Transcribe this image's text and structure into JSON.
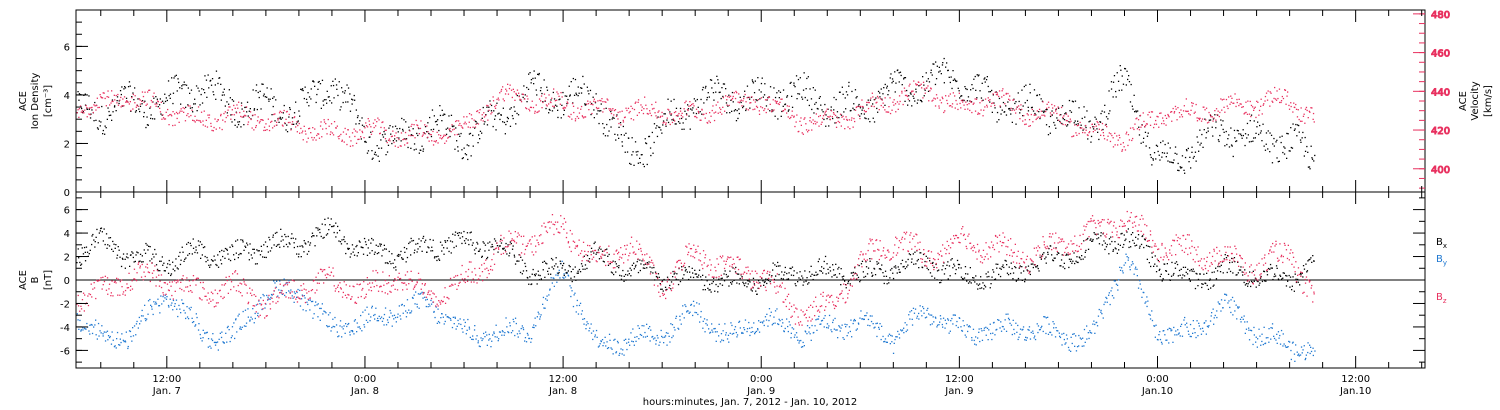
{
  "colors": {
    "frame": "#000000",
    "black_series": "#000000",
    "pink_series": "#e8305f",
    "blue_series": "#1f78d1"
  },
  "xlabel": "hours:minutes, Jan.  7, 2012 - Jan. 10, 2012",
  "x_ticks": [
    {
      "t": 12,
      "time": "12:00",
      "date": "Jan. 7"
    },
    {
      "t": 24,
      "time": "0:00",
      "date": "Jan. 8"
    },
    {
      "t": 36,
      "time": "12:00",
      "date": "Jan. 8"
    },
    {
      "t": 48,
      "time": "0:00",
      "date": "Jan. 9"
    },
    {
      "t": 60,
      "time": "12:00",
      "date": "Jan. 9"
    },
    {
      "t": 72,
      "time": "0:00",
      "date": "Jan.10"
    },
    {
      "t": 84,
      "time": "12:00",
      "date": "Jan.10"
    }
  ],
  "chart_data": [
    {
      "type": "scatter",
      "panel": "top",
      "x_unit": "hours since 2012-01-07 00:00",
      "xlim": [
        6.5,
        88.2
      ],
      "left_axis": {
        "label_line1": "ACE",
        "label_line2": "Ion Density",
        "unit": "[cm⁻³]",
        "ylim": [
          0,
          7.5
        ],
        "ticks": [
          0,
          2,
          4,
          6
        ]
      },
      "right_axis": {
        "label_line1": "ACE",
        "label_line2": "Velocity",
        "unit": "[km/s]",
        "ylim": [
          388,
          482
        ],
        "ticks": [
          400,
          420,
          440,
          460,
          480
        ]
      },
      "series": [
        {
          "name": "Ion Density",
          "axis": "left",
          "color": "#000000",
          "x": [
            6.5,
            8,
            10,
            12,
            14,
            16,
            18,
            20,
            22,
            24,
            26,
            28,
            30,
            32,
            34,
            36,
            38,
            40,
            42,
            44,
            46,
            48,
            50,
            52,
            54,
            56,
            58,
            60,
            62,
            64,
            66,
            68,
            70,
            72,
            74,
            76,
            78,
            80,
            81.5
          ],
          "y": [
            3.2,
            3.4,
            3.6,
            3.7,
            4.4,
            3.6,
            3.6,
            3.4,
            4.6,
            2.3,
            2.1,
            2.9,
            2.2,
            3.0,
            4.2,
            3.9,
            3.9,
            1.5,
            2.7,
            3.8,
            4.0,
            3.9,
            4.1,
            3.6,
            3.5,
            4.2,
            4.5,
            4.8,
            3.6,
            3.5,
            3.2,
            2.8,
            4.5,
            1.2,
            1.8,
            2.6,
            2.2,
            2.1,
            1.2
          ]
        },
        {
          "name": "Velocity",
          "axis": "right",
          "color": "#e8305f",
          "x": [
            6.5,
            8,
            10,
            12,
            14,
            16,
            18,
            20,
            22,
            24,
            26,
            28,
            30,
            32,
            34,
            36,
            38,
            40,
            42,
            44,
            46,
            48,
            50,
            52,
            54,
            56,
            58,
            60,
            62,
            64,
            66,
            68,
            70,
            72,
            74,
            76,
            78,
            80,
            81.5
          ],
          "y": [
            432,
            434,
            437,
            430,
            425,
            428,
            425,
            422,
            418,
            420,
            418,
            418,
            420,
            438,
            436,
            433,
            431,
            430,
            430,
            428,
            435,
            436,
            426,
            424,
            430,
            437,
            440,
            432,
            436,
            430,
            428,
            419,
            416,
            428,
            429,
            432,
            434,
            436,
            426
          ]
        }
      ]
    },
    {
      "type": "scatter",
      "panel": "bottom",
      "x_unit": "hours since 2012-01-07 00:00",
      "xlim": [
        6.5,
        88.2
      ],
      "left_axis": {
        "label_line1": "ACE",
        "label_line2": "B",
        "unit": "[nT]",
        "ylim": [
          -7.5,
          7.5
        ],
        "ticks": [
          -6,
          -4,
          -2,
          0,
          2,
          4,
          6
        ]
      },
      "zero_line": true,
      "series": [
        {
          "name": "Bx",
          "label": "B",
          "sub": "x",
          "color": "#000000",
          "x": [
            6.5,
            8,
            10,
            12,
            14,
            16,
            18,
            20,
            22,
            24,
            26,
            28,
            30,
            32,
            34,
            36,
            38,
            40,
            42,
            44,
            46,
            48,
            50,
            52,
            54,
            56,
            58,
            60,
            62,
            64,
            66,
            68,
            70,
            72,
            74,
            76,
            78,
            80,
            81.5
          ],
          "y": [
            2.5,
            3.3,
            2.0,
            1.5,
            2.5,
            2.0,
            3.0,
            3.2,
            4.2,
            2.5,
            2.2,
            3.0,
            3.2,
            3.0,
            0.8,
            0.8,
            2.2,
            0.8,
            0.3,
            0.2,
            -0.2,
            0.0,
            0.8,
            0.8,
            0.5,
            1.0,
            1.5,
            0.5,
            0.3,
            1.0,
            2.0,
            2.8,
            3.8,
            1.5,
            0.0,
            1.0,
            0.5,
            0.0,
            2.0
          ]
        },
        {
          "name": "By",
          "label": "B",
          "sub": "y",
          "color": "#1f78d1",
          "x": [
            6.5,
            8,
            10,
            12,
            14,
            16,
            18,
            20,
            22,
            24,
            26,
            28,
            30,
            32,
            34,
            36,
            38,
            40,
            42,
            44,
            46,
            48,
            50,
            52,
            54,
            56,
            58,
            60,
            62,
            64,
            66,
            68,
            70,
            72,
            74,
            76,
            78,
            80,
            81.5
          ],
          "y": [
            -3.0,
            -5.0,
            -4.5,
            -1.0,
            -4.5,
            -4.8,
            -1.0,
            -1.0,
            -4.2,
            -3.5,
            -2.5,
            -2.0,
            -4.5,
            -4.5,
            -4.0,
            1.0,
            -5.5,
            -5.0,
            -4.5,
            -2.5,
            -5.0,
            -3.0,
            -4.5,
            -4.0,
            -3.5,
            -5.0,
            -2.5,
            -4.5,
            -4.2,
            -4.0,
            -4.5,
            -5.0,
            2.0,
            -4.5,
            -4.5,
            -2.0,
            -4.5,
            -5.5,
            -6.0
          ]
        },
        {
          "name": "Bz",
          "label": "B",
          "sub": "z",
          "color": "#e8305f",
          "x": [
            6.5,
            8,
            10,
            12,
            14,
            16,
            18,
            20,
            22,
            24,
            26,
            28,
            30,
            32,
            34,
            36,
            38,
            40,
            42,
            44,
            46,
            48,
            50,
            52,
            54,
            56,
            58,
            60,
            62,
            64,
            66,
            68,
            70,
            72,
            74,
            76,
            78,
            80,
            81.5
          ],
          "y": [
            -1.5,
            -1.0,
            0.5,
            0.0,
            -1.0,
            -0.5,
            -2.0,
            -0.5,
            -0.2,
            -1.0,
            0.5,
            -1.5,
            0.0,
            2.5,
            3.5,
            4.5,
            1.5,
            3.0,
            -0.5,
            2.5,
            1.0,
            0.5,
            -2.5,
            -2.5,
            1.5,
            3.5,
            2.0,
            3.5,
            2.8,
            2.0,
            3.0,
            4.0,
            5.2,
            3.0,
            2.5,
            2.0,
            1.0,
            2.5,
            -2.0
          ]
        }
      ]
    }
  ]
}
